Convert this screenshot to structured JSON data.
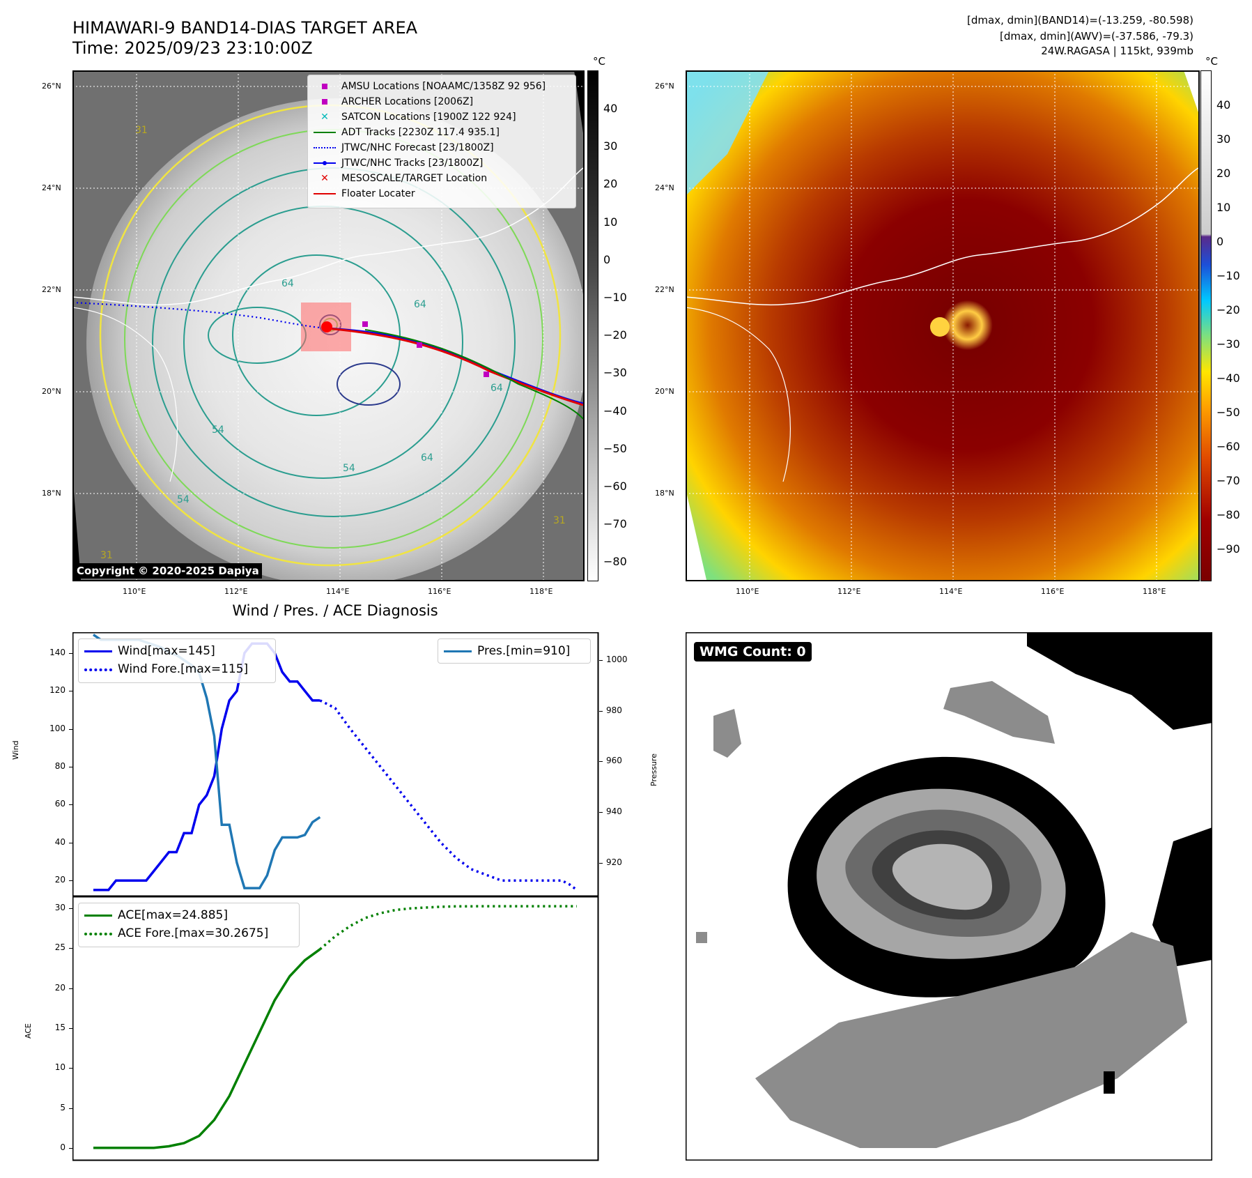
{
  "header": {
    "title_line1": "HIMAWARI-9 BAND14-DIAS TARGET AREA",
    "title_line2": "Time: 2025/09/23 23:10:00Z",
    "stat_line1": "[dmax, dmin](BAND14)=(-13.259, -80.598)",
    "stat_line2": "[dmax, dmin](AWV)=(-37.586, -79.3)",
    "stat_line3": "24W.RAGASA | 115kt, 939mb"
  },
  "map": {
    "lat_labels": [
      "26°N",
      "24°N",
      "22°N",
      "20°N",
      "18°N"
    ],
    "lon_labels": [
      "110°E",
      "112°E",
      "114°E",
      "116°E",
      "118°E"
    ],
    "contour_labels": [
      "64",
      "64",
      "64",
      "64",
      "54",
      "54",
      "54",
      "31",
      "31",
      "31"
    ],
    "copyright": "Copyright © 2020-2025 Dapiya",
    "colors": {
      "land_outline": "#ffffff",
      "contour_yellow": "#f0e442",
      "contour_lightgreen": "#7ed957",
      "contour_teal": "#2a9d8f",
      "contour_darkblue": "#2b3a8c"
    }
  },
  "legend": {
    "items": [
      {
        "label": "AMSU Locations [NOAAMC/1358Z 92 956]",
        "symbol": "magenta-square"
      },
      {
        "label": "ARCHER Locations [2006Z]",
        "symbol": "magenta-square"
      },
      {
        "label": "SATCON Locations [1900Z 122 924]",
        "symbol": "cyan-x"
      },
      {
        "label": "ADT Tracks [2230Z 117.4 935.1]",
        "symbol": "green-line"
      },
      {
        "label": "JTWC/NHC Forecast [23/1800Z]",
        "symbol": "blue-dotted"
      },
      {
        "label": "JTWC/NHC Tracks [23/1800Z]",
        "symbol": "blue-line-dot"
      },
      {
        "label": "MESOSCALE/TARGET Location",
        "symbol": "red-x"
      },
      {
        "label": "Floater Locater",
        "symbol": "red-line"
      }
    ]
  },
  "colorbar_left": {
    "unit": "°C",
    "ticks": [
      "40",
      "30",
      "20",
      "10",
      "0",
      "−10",
      "−20",
      "−30",
      "−40",
      "−50",
      "−60",
      "−70",
      "−80"
    ]
  },
  "colorbar_right": {
    "unit": "°C",
    "ticks": [
      "40",
      "30",
      "20",
      "10",
      "0",
      "−10",
      "−20",
      "−30",
      "−40",
      "−50",
      "−60",
      "−70",
      "−80",
      "−90"
    ]
  },
  "chart_data": [
    {
      "type": "line",
      "title": "Wind / Pres. / ACE Diagnosis",
      "ylabel": "Wind",
      "y2label": "Pressure",
      "ylim": [
        12,
        151
      ],
      "y2lim": [
        907,
        1011
      ],
      "yticks": [
        "20",
        "40",
        "60",
        "80",
        "100",
        "120",
        "140"
      ],
      "y2ticks": [
        "920",
        "940",
        "960",
        "980",
        "1000"
      ],
      "series": [
        {
          "name": "Wind[max=145]",
          "axis": "left",
          "style": "solid",
          "color": "#0000ee",
          "x": [
            0,
            1,
            2,
            3,
            4,
            5,
            6,
            7,
            8,
            9,
            10,
            11,
            12,
            13,
            14,
            15,
            16,
            17,
            18,
            19,
            20,
            21,
            22,
            23,
            24,
            25,
            26,
            27,
            28,
            29,
            30
          ],
          "values": [
            15,
            15,
            15,
            20,
            20,
            20,
            20,
            20,
            25,
            30,
            35,
            35,
            45,
            45,
            60,
            65,
            75,
            100,
            115,
            120,
            140,
            145,
            145,
            145,
            140,
            130,
            125,
            125,
            120,
            115,
            115
          ]
        },
        {
          "name": "Wind Fore.[max=115]",
          "axis": "left",
          "style": "dotted",
          "color": "#0000ee",
          "x": [
            30,
            32,
            34,
            36,
            38,
            40,
            42,
            44,
            46,
            48,
            50,
            52,
            54,
            56,
            58,
            60,
            62,
            63,
            64
          ],
          "values": [
            115,
            111,
            100,
            90,
            80,
            70,
            60,
            50,
            40,
            32,
            26,
            23,
            20,
            20,
            20,
            20,
            20,
            18,
            15
          ]
        },
        {
          "name": "Pres.[min=910]",
          "axis": "right",
          "style": "solid",
          "color": "#1f77b4",
          "x": [
            0,
            1,
            2,
            3,
            4,
            5,
            6,
            7,
            8,
            9,
            10,
            11,
            12,
            13,
            14,
            15,
            16,
            17,
            18,
            19,
            20,
            21,
            22,
            23,
            24,
            25,
            26,
            27,
            28,
            29,
            30
          ],
          "values": [
            1010,
            1008,
            1008,
            1008,
            1008,
            1008,
            1008,
            1007,
            1006,
            1005,
            1003,
            1002,
            1000,
            998,
            995,
            985,
            970,
            935,
            935,
            920,
            910,
            910,
            910,
            915,
            925,
            930,
            930,
            930,
            931,
            936,
            938
          ]
        }
      ]
    },
    {
      "type": "line",
      "ylabel": "ACE",
      "ylim": [
        -1.5,
        31.5
      ],
      "yticks": [
        "0",
        "5",
        "10",
        "15",
        "20",
        "25",
        "30"
      ],
      "series": [
        {
          "name": "ACE[max=24.885]",
          "style": "solid",
          "color": "#008000",
          "x": [
            0,
            2,
            4,
            6,
            8,
            10,
            12,
            14,
            16,
            18,
            20,
            22,
            24,
            26,
            28,
            30
          ],
          "values": [
            0,
            0,
            0,
            0,
            0,
            0.2,
            0.6,
            1.5,
            3.5,
            6.5,
            10.5,
            14.5,
            18.5,
            21.5,
            23.5,
            24.885
          ]
        },
        {
          "name": "ACE Fore.[max=30.2675]",
          "style": "dotted",
          "color": "#008000",
          "x": [
            30,
            32,
            34,
            36,
            38,
            40,
            42,
            44,
            46,
            48,
            50,
            52,
            54,
            56,
            58,
            60,
            62,
            64
          ],
          "values": [
            24.885,
            26.5,
            27.8,
            28.8,
            29.4,
            29.8,
            30.0,
            30.1,
            30.2,
            30.25,
            30.26,
            30.2675,
            30.2675,
            30.2675,
            30.2675,
            30.2675,
            30.2675,
            30.2675
          ]
        }
      ]
    }
  ],
  "ace_legend": [
    "ACE[max=24.885]",
    "ACE Fore.[max=30.2675]"
  ],
  "wmg": {
    "label": "WMG Count: 0"
  }
}
